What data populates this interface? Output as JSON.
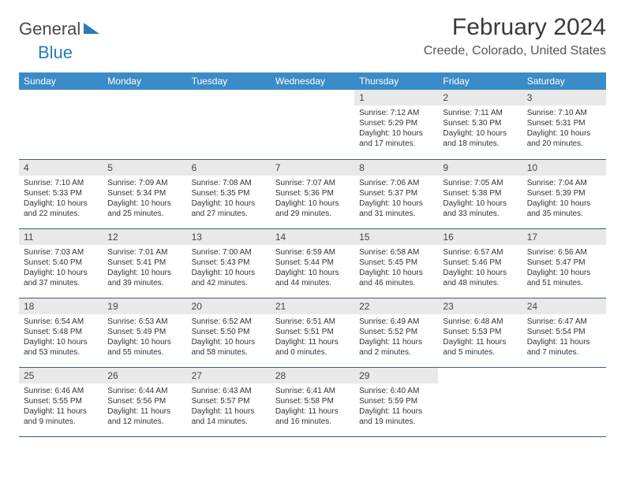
{
  "logo": {
    "text_general": "General",
    "text_blue": "Blue"
  },
  "title": "February 2024",
  "location": "Creede, Colorado, United States",
  "colors": {
    "header_bg": "#3b8bc8",
    "header_fg": "#ffffff",
    "daynum_bg": "#e9e9e9",
    "week_border": "#375f82",
    "logo_blue": "#2a7ab8",
    "logo_gray": "#4a4a4a"
  },
  "day_headers": [
    "Sunday",
    "Monday",
    "Tuesday",
    "Wednesday",
    "Thursday",
    "Friday",
    "Saturday"
  ],
  "weeks": [
    [
      null,
      null,
      null,
      null,
      {
        "n": "1",
        "sr": "Sunrise: 7:12 AM",
        "ss": "Sunset: 5:29 PM",
        "dl": "Daylight: 10 hours and 17 minutes."
      },
      {
        "n": "2",
        "sr": "Sunrise: 7:11 AM",
        "ss": "Sunset: 5:30 PM",
        "dl": "Daylight: 10 hours and 18 minutes."
      },
      {
        "n": "3",
        "sr": "Sunrise: 7:10 AM",
        "ss": "Sunset: 5:31 PM",
        "dl": "Daylight: 10 hours and 20 minutes."
      }
    ],
    [
      {
        "n": "4",
        "sr": "Sunrise: 7:10 AM",
        "ss": "Sunset: 5:33 PM",
        "dl": "Daylight: 10 hours and 22 minutes."
      },
      {
        "n": "5",
        "sr": "Sunrise: 7:09 AM",
        "ss": "Sunset: 5:34 PM",
        "dl": "Daylight: 10 hours and 25 minutes."
      },
      {
        "n": "6",
        "sr": "Sunrise: 7:08 AM",
        "ss": "Sunset: 5:35 PM",
        "dl": "Daylight: 10 hours and 27 minutes."
      },
      {
        "n": "7",
        "sr": "Sunrise: 7:07 AM",
        "ss": "Sunset: 5:36 PM",
        "dl": "Daylight: 10 hours and 29 minutes."
      },
      {
        "n": "8",
        "sr": "Sunrise: 7:06 AM",
        "ss": "Sunset: 5:37 PM",
        "dl": "Daylight: 10 hours and 31 minutes."
      },
      {
        "n": "9",
        "sr": "Sunrise: 7:05 AM",
        "ss": "Sunset: 5:38 PM",
        "dl": "Daylight: 10 hours and 33 minutes."
      },
      {
        "n": "10",
        "sr": "Sunrise: 7:04 AM",
        "ss": "Sunset: 5:39 PM",
        "dl": "Daylight: 10 hours and 35 minutes."
      }
    ],
    [
      {
        "n": "11",
        "sr": "Sunrise: 7:03 AM",
        "ss": "Sunset: 5:40 PM",
        "dl": "Daylight: 10 hours and 37 minutes."
      },
      {
        "n": "12",
        "sr": "Sunrise: 7:01 AM",
        "ss": "Sunset: 5:41 PM",
        "dl": "Daylight: 10 hours and 39 minutes."
      },
      {
        "n": "13",
        "sr": "Sunrise: 7:00 AM",
        "ss": "Sunset: 5:43 PM",
        "dl": "Daylight: 10 hours and 42 minutes."
      },
      {
        "n": "14",
        "sr": "Sunrise: 6:59 AM",
        "ss": "Sunset: 5:44 PM",
        "dl": "Daylight: 10 hours and 44 minutes."
      },
      {
        "n": "15",
        "sr": "Sunrise: 6:58 AM",
        "ss": "Sunset: 5:45 PM",
        "dl": "Daylight: 10 hours and 46 minutes."
      },
      {
        "n": "16",
        "sr": "Sunrise: 6:57 AM",
        "ss": "Sunset: 5:46 PM",
        "dl": "Daylight: 10 hours and 48 minutes."
      },
      {
        "n": "17",
        "sr": "Sunrise: 6:56 AM",
        "ss": "Sunset: 5:47 PM",
        "dl": "Daylight: 10 hours and 51 minutes."
      }
    ],
    [
      {
        "n": "18",
        "sr": "Sunrise: 6:54 AM",
        "ss": "Sunset: 5:48 PM",
        "dl": "Daylight: 10 hours and 53 minutes."
      },
      {
        "n": "19",
        "sr": "Sunrise: 6:53 AM",
        "ss": "Sunset: 5:49 PM",
        "dl": "Daylight: 10 hours and 55 minutes."
      },
      {
        "n": "20",
        "sr": "Sunrise: 6:52 AM",
        "ss": "Sunset: 5:50 PM",
        "dl": "Daylight: 10 hours and 58 minutes."
      },
      {
        "n": "21",
        "sr": "Sunrise: 6:51 AM",
        "ss": "Sunset: 5:51 PM",
        "dl": "Daylight: 11 hours and 0 minutes."
      },
      {
        "n": "22",
        "sr": "Sunrise: 6:49 AM",
        "ss": "Sunset: 5:52 PM",
        "dl": "Daylight: 11 hours and 2 minutes."
      },
      {
        "n": "23",
        "sr": "Sunrise: 6:48 AM",
        "ss": "Sunset: 5:53 PM",
        "dl": "Daylight: 11 hours and 5 minutes."
      },
      {
        "n": "24",
        "sr": "Sunrise: 6:47 AM",
        "ss": "Sunset: 5:54 PM",
        "dl": "Daylight: 11 hours and 7 minutes."
      }
    ],
    [
      {
        "n": "25",
        "sr": "Sunrise: 6:46 AM",
        "ss": "Sunset: 5:55 PM",
        "dl": "Daylight: 11 hours and 9 minutes."
      },
      {
        "n": "26",
        "sr": "Sunrise: 6:44 AM",
        "ss": "Sunset: 5:56 PM",
        "dl": "Daylight: 11 hours and 12 minutes."
      },
      {
        "n": "27",
        "sr": "Sunrise: 6:43 AM",
        "ss": "Sunset: 5:57 PM",
        "dl": "Daylight: 11 hours and 14 minutes."
      },
      {
        "n": "28",
        "sr": "Sunrise: 6:41 AM",
        "ss": "Sunset: 5:58 PM",
        "dl": "Daylight: 11 hours and 16 minutes."
      },
      {
        "n": "29",
        "sr": "Sunrise: 6:40 AM",
        "ss": "Sunset: 5:59 PM",
        "dl": "Daylight: 11 hours and 19 minutes."
      },
      null,
      null
    ]
  ]
}
